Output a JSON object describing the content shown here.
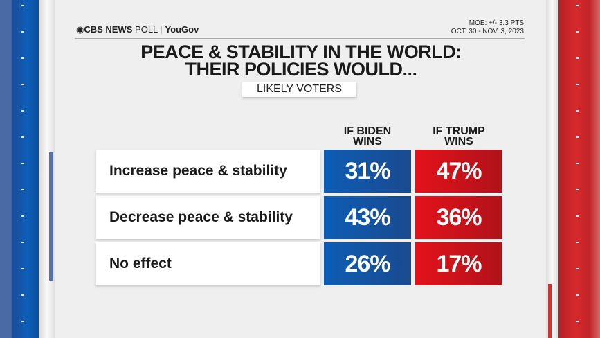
{
  "header": {
    "logo_cbs": "CBS NEWS",
    "logo_poll": "POLL",
    "logo_partner": "YouGov",
    "moe": "MOE: +/- 3.3 PTS",
    "dates": "OCT. 30 - NOV. 3, 2023"
  },
  "title_line1": "PEACE & STABILITY IN THE WORLD:",
  "title_line2": "THEIR POLICIES WOULD...",
  "subtitle": "LIKELY VOTERS",
  "colors": {
    "biden": "#0d5db5",
    "trump": "#e3121b"
  },
  "chart_data": {
    "type": "table",
    "columns": [
      {
        "line1": "IF BIDEN",
        "line2": "WINS"
      },
      {
        "line1": "IF TRUMP",
        "line2": "WINS"
      }
    ],
    "rows": [
      {
        "label": "Increase peace & stability",
        "biden": "31%",
        "trump": "47%"
      },
      {
        "label": "Decrease peace & stability",
        "biden": "43%",
        "trump": "36%"
      },
      {
        "label": "No effect",
        "biden": "26%",
        "trump": "17%"
      }
    ]
  }
}
